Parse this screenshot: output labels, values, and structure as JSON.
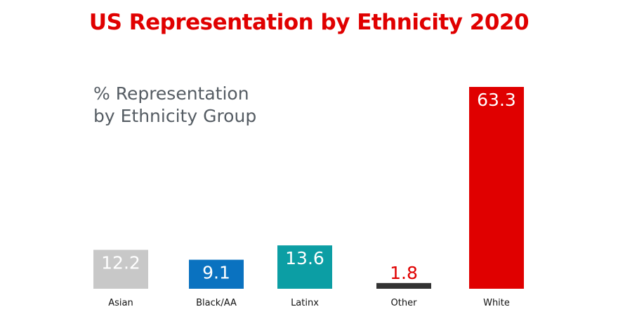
{
  "colors": {
    "title": "#e00000",
    "subtitle": "#555c63",
    "label": "#111111"
  },
  "chart_data": {
    "type": "bar",
    "title": "US Representation by Ethnicity 2020",
    "subtitle_lines": [
      "% Representation",
      "by Ethnicity Group"
    ],
    "categories": [
      "Asian",
      "Black/AA",
      "Latinx",
      "Other",
      "White"
    ],
    "values": [
      12.2,
      9.1,
      13.6,
      1.8,
      63.3
    ],
    "value_labels": [
      "12.2",
      "9.1",
      "13.6",
      "1.8",
      "63.3"
    ],
    "bar_colors": [
      "#c8c8c8",
      "#0a72c0",
      "#0c9ea4",
      "#333333",
      "#e00000"
    ],
    "value_label_colors": [
      "#ffffff",
      "#ffffff",
      "#ffffff",
      "#e00000",
      "#ffffff"
    ],
    "value_label_position": [
      "inside",
      "inside",
      "inside",
      "above",
      "inside"
    ],
    "xlabel": "",
    "ylabel": "",
    "ylim": [
      0,
      63.3
    ],
    "grid": false
  }
}
